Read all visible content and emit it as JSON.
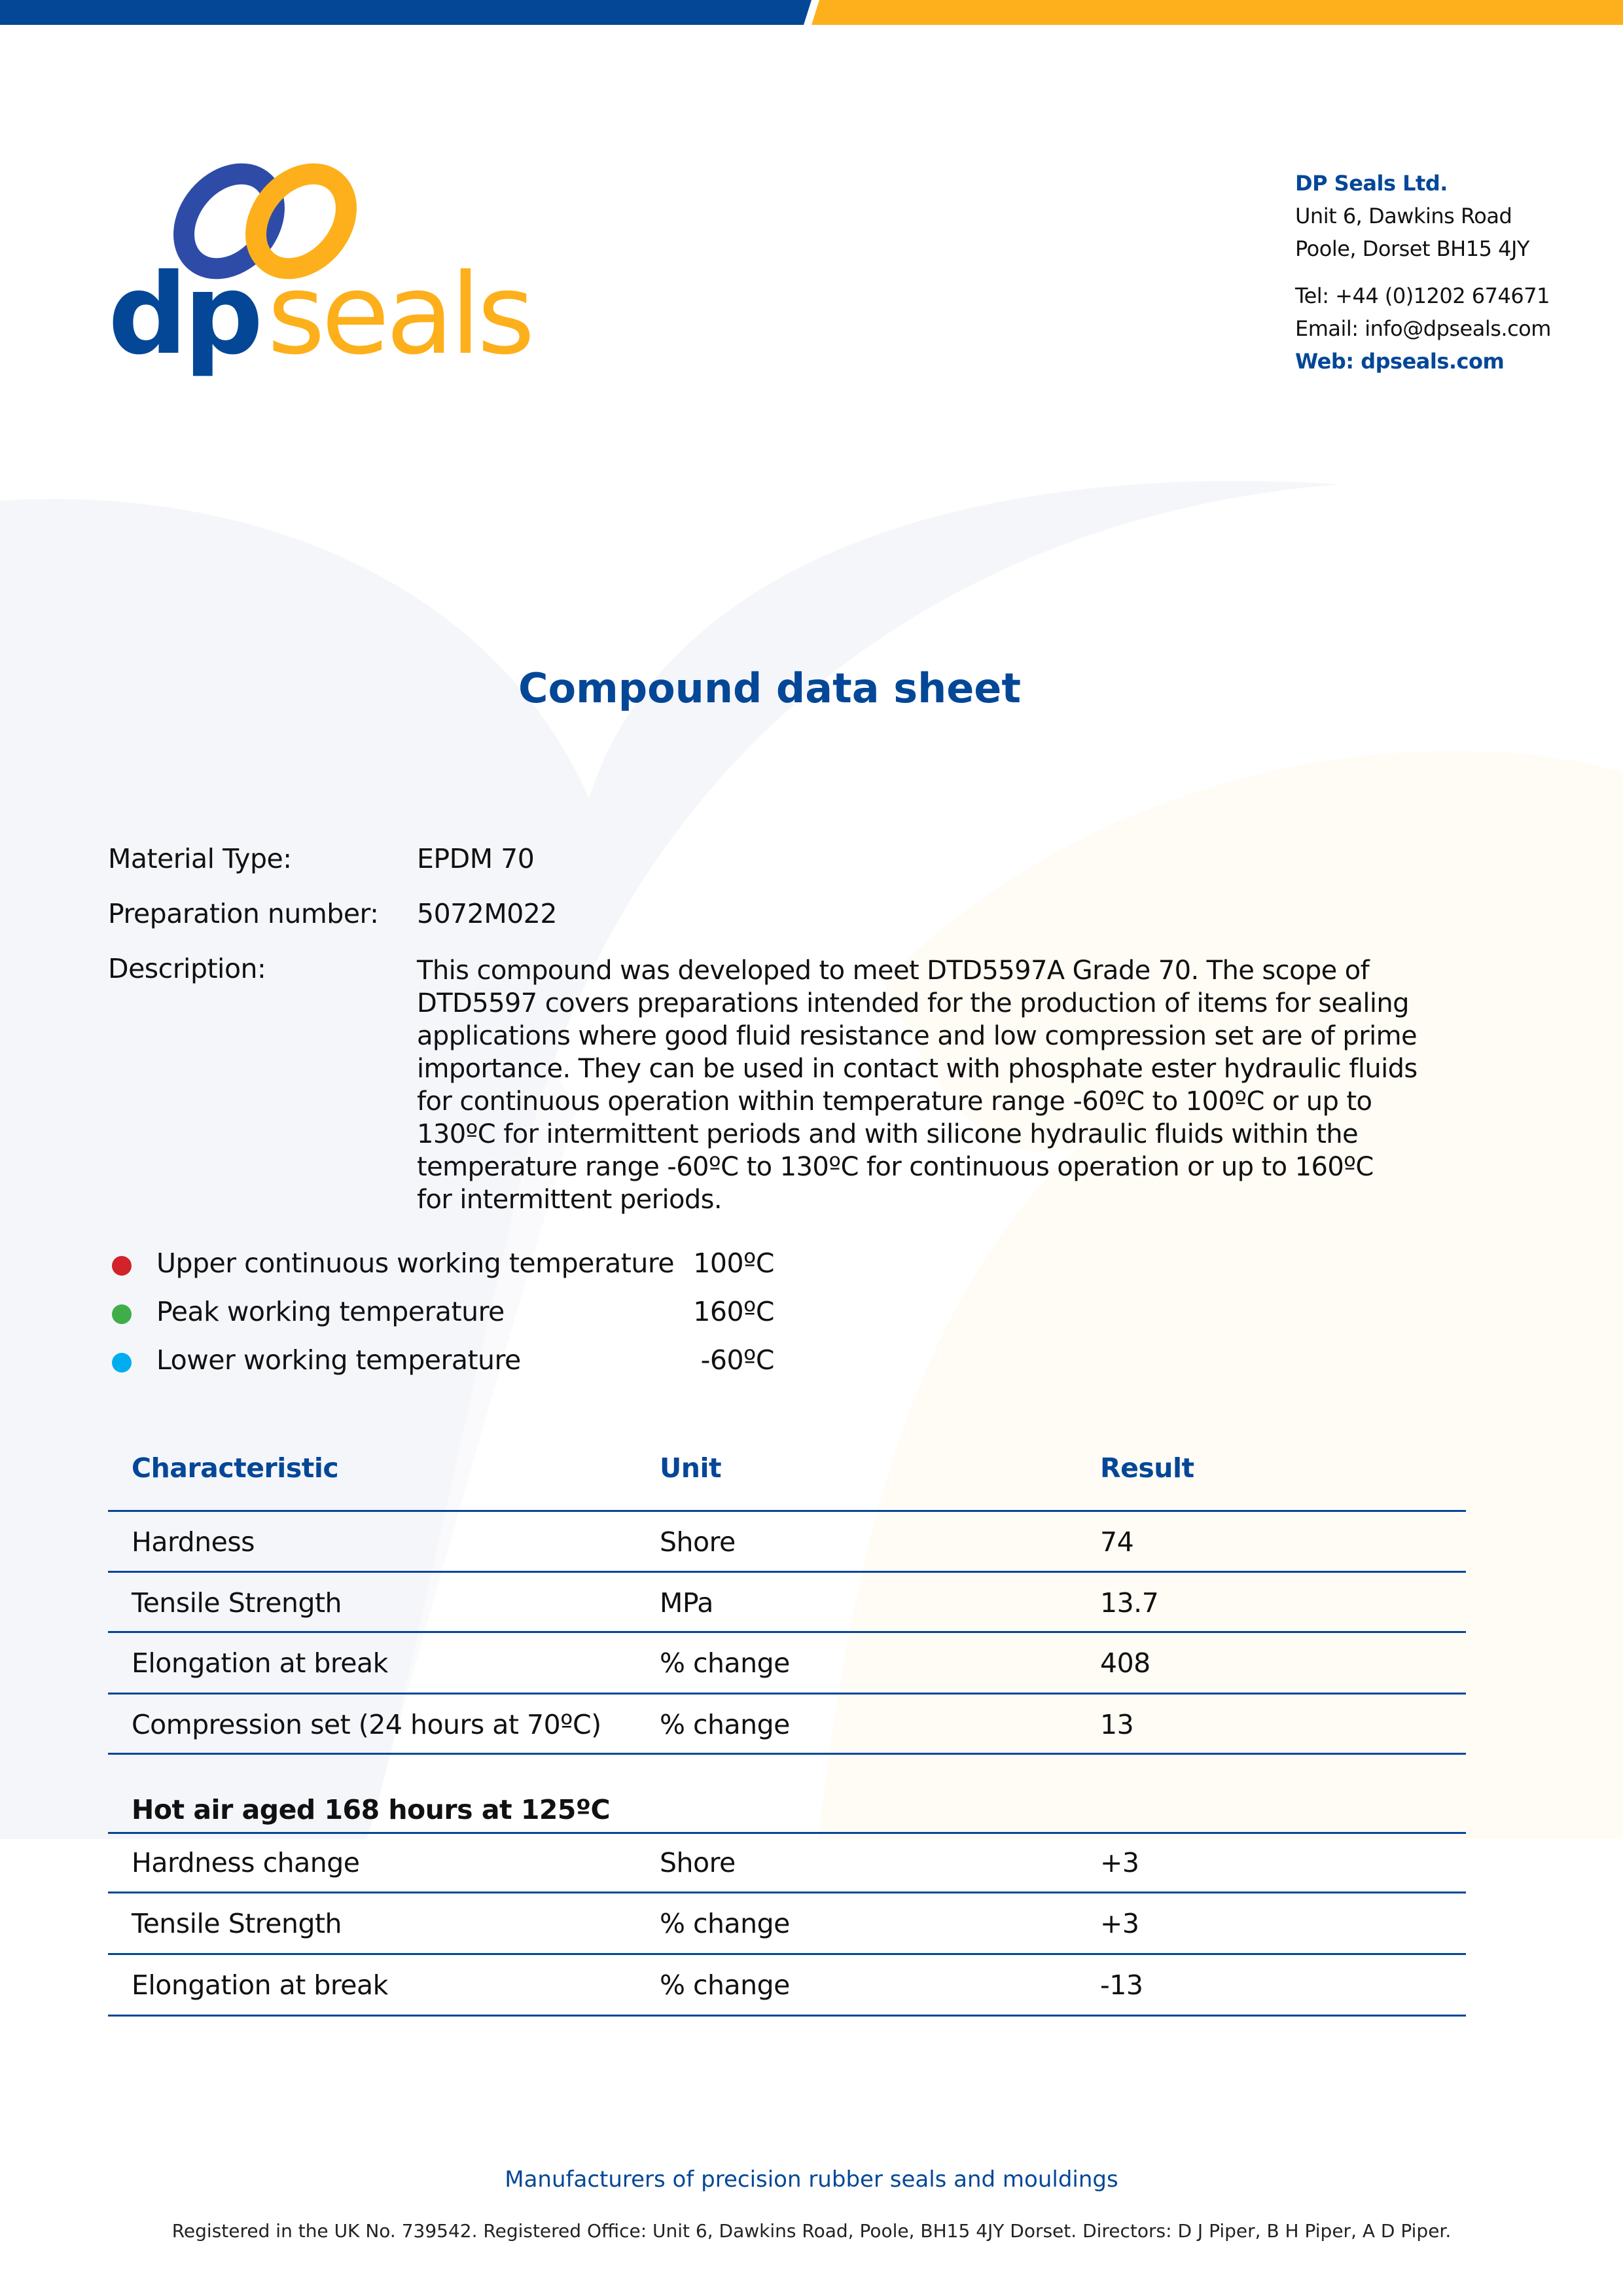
{
  "brand": {
    "logo_text_dp": "dp",
    "logo_text_seals": "seals",
    "colors": {
      "blue": "#044797",
      "yellow": "#FDB01B"
    }
  },
  "address": {
    "company": "DP Seals Ltd.",
    "line1": "Unit 6, Dawkins Road",
    "line2": "Poole, Dorset BH15 4JY",
    "tel": "Tel: +44 (0)1202 674671",
    "email": "Email: info@dpseals.com",
    "web": "Web: dpseals.com"
  },
  "title": "Compound data sheet",
  "fields": {
    "material_label": "Material Type:",
    "material_value": "EPDM 70",
    "prep_label": "Preparation number:",
    "prep_value": "5072M022",
    "desc_label": "Description:",
    "desc_lines": [
      "This compound was developed to meet DTD5597A Grade 70. The scope of",
      "DTD5597 covers preparations intended for the production of items for sealing",
      "applications where good fluid resistance and low compression set are of prime",
      "importance. They can be used in contact with phosphate ester hydraulic fluids",
      "for continuous operation within temperature range -60ºC to 100ºC or up to",
      "130ºC for intermittent periods and with silicone hydraulic fluids within the",
      "temperature range -60ºC to 130ºC for continuous operation or up to 160ºC",
      "for intermittent periods."
    ]
  },
  "temperatures": [
    {
      "label": "Upper continuous working temperature",
      "value": "100ºC",
      "color": "#D2232A"
    },
    {
      "label": "Peak working temperature",
      "value": "160ºC",
      "color": "#3FAE49"
    },
    {
      "label": "Lower working temperature",
      "value": "-60ºC",
      "color": "#00AEEF"
    }
  ],
  "table": {
    "headers": [
      "Characteristic",
      "Unit",
      "Result"
    ],
    "rows": [
      [
        "Hardness",
        "Shore",
        "74"
      ],
      [
        "Tensile Strength",
        "MPa",
        "13.7"
      ],
      [
        "Elongation at break",
        "% change",
        "408"
      ],
      [
        "Compression set (24 hours at 70ºC)",
        "% change",
        "13"
      ]
    ],
    "section_title": "Hot air aged 168 hours at 125ºC",
    "section_rows": [
      [
        "Hardness change",
        "Shore",
        "+3"
      ],
      [
        "Tensile Strength",
        "% change",
        "+3"
      ],
      [
        "Elongation at break",
        "% change",
        "-13"
      ]
    ]
  },
  "footer": {
    "tagline": "Manufacturers of precision rubber seals and mouldings",
    "registration": "Registered in the UK No. 739542. Registered Office: Unit 6, Dawkins Road, Poole, BH15 4JY Dorset. Directors: D J Piper, B H Piper, A D Piper."
  }
}
